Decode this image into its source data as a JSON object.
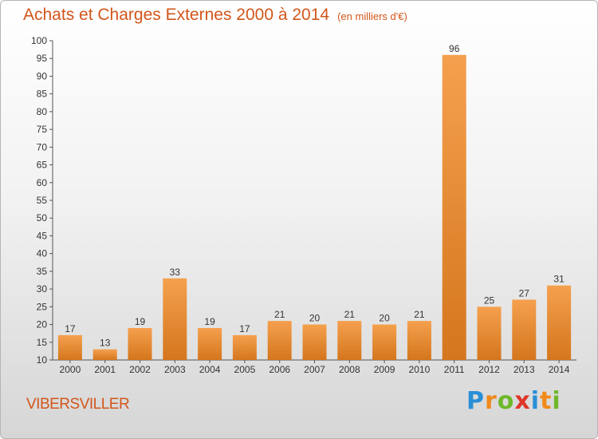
{
  "header": {
    "title": "Achats et Charges Externes 2000 à 2014",
    "subtitle": "(en milliers d'€)"
  },
  "footer": {
    "commune": "VIBERSVILLER",
    "logo_letters": [
      "P",
      "r",
      "o",
      "x",
      "i",
      "t",
      "i"
    ]
  },
  "colors": {
    "title": "#d2561b",
    "bar_light": "#f5a04e",
    "bar_dark": "#d4761d",
    "logo": [
      "#2a8fd6",
      "#f08a1c",
      "#6fb82b",
      "#e0362a",
      "#2a8fd6",
      "#f08a1c",
      "#6fb82b"
    ]
  },
  "chart_data": {
    "type": "bar",
    "title": "Achats et Charges Externes 2000 à 2014",
    "subtitle": "(en milliers d'€)",
    "categories": [
      "2000",
      "2001",
      "2002",
      "2003",
      "2004",
      "2005",
      "2006",
      "2007",
      "2008",
      "2009",
      "2010",
      "2011",
      "2012",
      "2013",
      "2014"
    ],
    "values": [
      17,
      13,
      19,
      33,
      19,
      17,
      21,
      20,
      21,
      20,
      21,
      96,
      25,
      27,
      31
    ],
    "ylim": [
      10,
      100
    ],
    "yticks": [
      10,
      15,
      20,
      25,
      30,
      35,
      40,
      45,
      50,
      55,
      60,
      65,
      70,
      75,
      80,
      85,
      90,
      95,
      100
    ],
    "grid": false,
    "data_labels": true
  }
}
